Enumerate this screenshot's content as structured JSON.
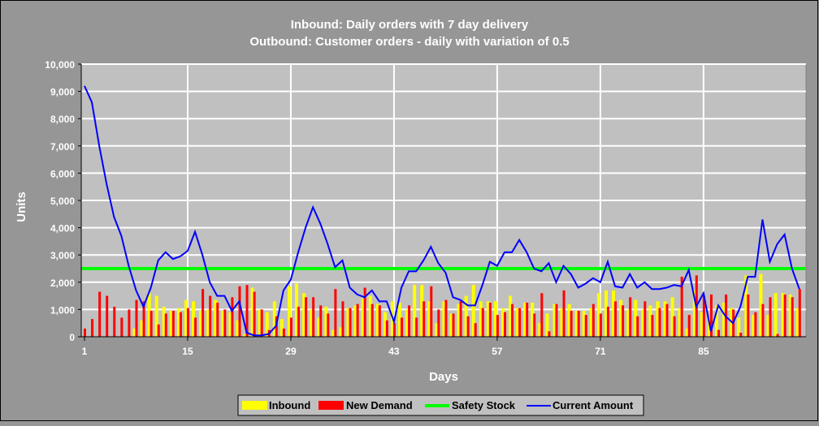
{
  "chart_data": {
    "type": "bar",
    "title": [
      "Inbound: Daily orders with 7 day delivery",
      "Outbound: Customer orders - daily with variation of 0.5"
    ],
    "xlabel": "Days",
    "ylabel": "Units",
    "ylim": [
      0,
      10000
    ],
    "yticks": [
      "0",
      "1,000",
      "2,000",
      "3,000",
      "4,000",
      "5,000",
      "6,000",
      "7,000",
      "8,000",
      "9,000",
      "10,000"
    ],
    "xticks": [
      1,
      15,
      29,
      43,
      57,
      71,
      85
    ],
    "grid": true,
    "legend_position": "bottom",
    "days": 98,
    "series": [
      {
        "name": "Inbound",
        "kind": "bar",
        "color": "#ffff00",
        "values": [
          0,
          0,
          0,
          0,
          0,
          0,
          0,
          300,
          600,
          1600,
          1500,
          1100,
          950,
          1050,
          1350,
          1300,
          950,
          1000,
          1350,
          950,
          900,
          600,
          100,
          1800,
          1000,
          900,
          1300,
          650,
          1850,
          1950,
          1600,
          1000,
          700,
          1100,
          250,
          350,
          1050,
          1150,
          1400,
          1500,
          1200,
          900,
          1300,
          1250,
          1000,
          1900,
          1900,
          1300,
          500,
          1300,
          850,
          1200,
          1500,
          1900,
          1300,
          1300,
          1300,
          1050,
          1500,
          1050,
          1250,
          1250,
          500,
          850,
          1200,
          1050,
          1200,
          950,
          950,
          1050,
          1600,
          1700,
          1700,
          1350,
          1000,
          1350,
          1000,
          1150,
          1300,
          1300,
          1450,
          1050,
          300,
          1700,
          900,
          700,
          1150,
          1250,
          1050,
          700,
          2250,
          800,
          2300,
          800,
          1600,
          1600,
          1550,
          1050
        ]
      },
      {
        "name": "New Demand",
        "kind": "bar",
        "color": "#ff0000",
        "values": [
          300,
          650,
          1650,
          1500,
          1100,
          700,
          1000,
          1350,
          1300,
          950,
          450,
          850,
          950,
          900,
          1050,
          700,
          1750,
          1500,
          1250,
          1000,
          1450,
          1850,
          1900,
          1650,
          1000,
          250,
          750,
          300,
          700,
          1100,
          1450,
          1450,
          1150,
          850,
          1750,
          1300,
          1050,
          1200,
          1800,
          1200,
          1150,
          600,
          500,
          700,
          1150,
          700,
          1300,
          1850,
          1000,
          1350,
          850,
          1300,
          750,
          500,
          1050,
          1250,
          800,
          900,
          1200,
          1050,
          1250,
          850,
          1600,
          200,
          1200,
          1700,
          950,
          950,
          800,
          1200,
          850,
          1100,
          1300,
          1150,
          1450,
          750,
          1300,
          800,
          1050,
          1200,
          750,
          2200,
          800,
          2250,
          1500,
          1550,
          250,
          1550,
          1000,
          150,
          1550,
          900,
          1200,
          1450,
          100,
          1550,
          1450,
          1750
        ]
      },
      {
        "name": "Safety Stock",
        "kind": "line",
        "color": "#00ff00",
        "constant": 2500
      },
      {
        "name": "Current Amount",
        "kind": "line",
        "color": "#0000ff",
        "values": [
          9200,
          8600,
          7000,
          5600,
          4400,
          3700,
          2600,
          1700,
          1100,
          1800,
          2800,
          3100,
          2850,
          2950,
          3150,
          3850,
          3000,
          2000,
          1500,
          1500,
          950,
          1300,
          150,
          50,
          50,
          100,
          400,
          1700,
          2100,
          3100,
          4000,
          4750,
          4150,
          3400,
          2550,
          2800,
          1800,
          1550,
          1450,
          1700,
          1300,
          1300,
          550,
          1800,
          2400,
          2400,
          2800,
          3300,
          2700,
          2350,
          1450,
          1350,
          1150,
          1150,
          1900,
          2750,
          2600,
          3100,
          3100,
          3550,
          3100,
          2500,
          2400,
          2700,
          2000,
          2600,
          2300,
          1800,
          1950,
          2150,
          2000,
          2750,
          1850,
          1800,
          2300,
          1800,
          2000,
          1750,
          1750,
          1800,
          1900,
          1850,
          2450,
          1100,
          1600,
          200,
          1150,
          750,
          500,
          1100,
          2200,
          2200,
          4300,
          2750,
          3400,
          3750,
          2500,
          1750
        ]
      }
    ]
  },
  "legend": {
    "inbound": "Inbound",
    "demand": "New Demand",
    "safety": "Safety Stock",
    "current": "Current Amount"
  }
}
